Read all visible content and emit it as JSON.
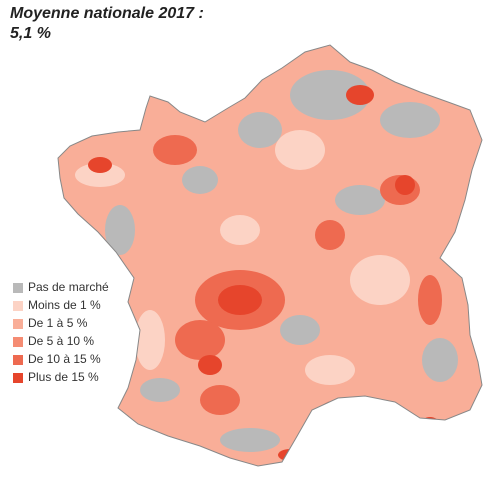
{
  "map": {
    "title": [
      "Moyenne nationale 2017 :",
      "5,1 %"
    ],
    "legend": [
      {
        "label": "Pas de marché",
        "color": "#b9b9b9"
      },
      {
        "label": "Moins de 1 %",
        "color": "#fcd3c5"
      },
      {
        "label": "De 1 à 5 %",
        "color": "#f9ae98"
      },
      {
        "label": "De 5 à 10 %",
        "color": "#f58c73"
      },
      {
        "label": "De 10 à 15 %",
        "color": "#ee6a50"
      },
      {
        "label": "Plus de 15 %",
        "color": "#e6452c"
      }
    ]
  }
}
